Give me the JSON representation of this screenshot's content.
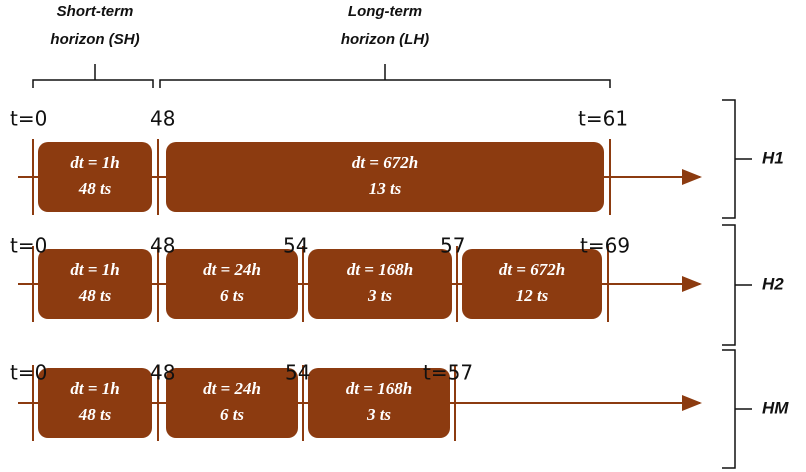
{
  "header": {
    "short_term": {
      "lines": [
        "Short-term",
        "horizon (SH)"
      ]
    },
    "long_term": {
      "lines": [
        "Long-term",
        "horizon (LH)"
      ]
    }
  },
  "rows": [
    {
      "label": "H1",
      "ticks": [
        "t=0",
        "48",
        "t=61"
      ],
      "boxes": [
        {
          "dt": "dt = 1h",
          "ts": "48 ts"
        },
        {
          "dt": "dt = 672h",
          "ts": "13 ts"
        }
      ]
    },
    {
      "label": "H2",
      "ticks": [
        "t=0",
        "48",
        "54",
        "57",
        "t=69"
      ],
      "boxes": [
        {
          "dt": "dt = 1h",
          "ts": "48 ts"
        },
        {
          "dt": "dt = 24h",
          "ts": "6 ts"
        },
        {
          "dt": "dt = 168h",
          "ts": "3 ts"
        },
        {
          "dt": "dt = 672h",
          "ts": "12 ts"
        }
      ]
    },
    {
      "label": "HM",
      "ticks": [
        "t=0",
        "48",
        "54",
        "t=57"
      ],
      "boxes": [
        {
          "dt": "dt = 1h",
          "ts": "48 ts"
        },
        {
          "dt": "dt = 24h",
          "ts": "6 ts"
        },
        {
          "dt": "dt = 168h",
          "ts": "3 ts"
        }
      ]
    }
  ]
}
